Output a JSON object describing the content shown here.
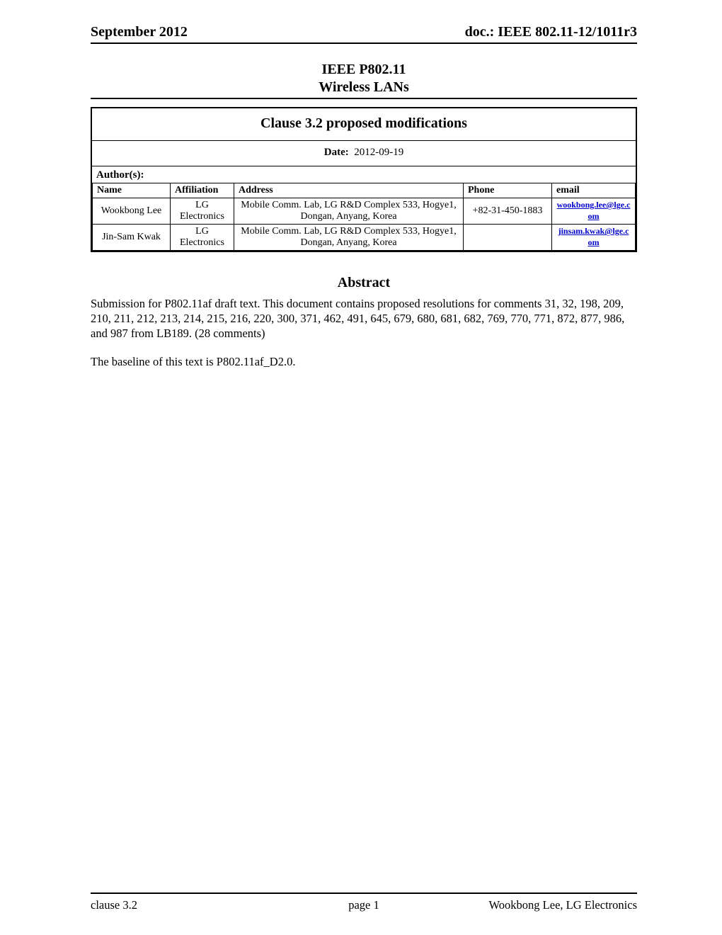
{
  "header": {
    "left": "September 2012",
    "right": "doc.: IEEE 802.11-12/1011r3"
  },
  "title": {
    "line1": "IEEE P802.11",
    "line2": "Wireless LANs"
  },
  "doc": {
    "title": "Clause 3.2 proposed modifications",
    "date_label": "Date:",
    "date_value": "2012-09-19",
    "authors_label": "Author(s):",
    "columns": {
      "name": "Name",
      "affiliation": "Affiliation",
      "address": "Address",
      "phone": "Phone",
      "email": "email"
    },
    "authors": [
      {
        "name": "Wookbong Lee",
        "affiliation": "LG Electronics",
        "address": "Mobile Comm. Lab, LG R&D Complex 533, Hogye1, Dongan, Anyang, Korea",
        "phone": "+82-31-450-1883",
        "email": "wookbong.lee@lge.com"
      },
      {
        "name": "Jin-Sam Kwak",
        "affiliation": "LG Electronics",
        "address": "Mobile Comm. Lab, LG R&D Complex 533, Hogye1, Dongan, Anyang, Korea",
        "phone": "",
        "email": "jinsam.kwak@lge.com"
      }
    ]
  },
  "abstract": {
    "heading": "Abstract",
    "p1": "Submission for P802.11af draft text.  This document contains proposed resolutions for comments 31, 32, 198, 209, 210, 211, 212, 213, 214, 215, 216, 220, 300, 371, 462, 491, 645, 679, 680, 681, 682, 769, 770, 771, 872, 877, 986, and 987 from LB189. (28 comments)",
    "p2": "The baseline of this text is P802.11af_D2.0."
  },
  "footer": {
    "left": "clause 3.2",
    "center": "page 1",
    "right": "Wookbong Lee, LG Electronics"
  },
  "style": {
    "link_color": "#0000cc",
    "text_color": "#000000",
    "background": "#ffffff",
    "border_color": "#000000",
    "body_font": "Times New Roman",
    "header_fontsize_pt": 15,
    "title_fontsize_pt": 15,
    "table_fontsize_pt": 11,
    "body_fontsize_pt": 12
  }
}
